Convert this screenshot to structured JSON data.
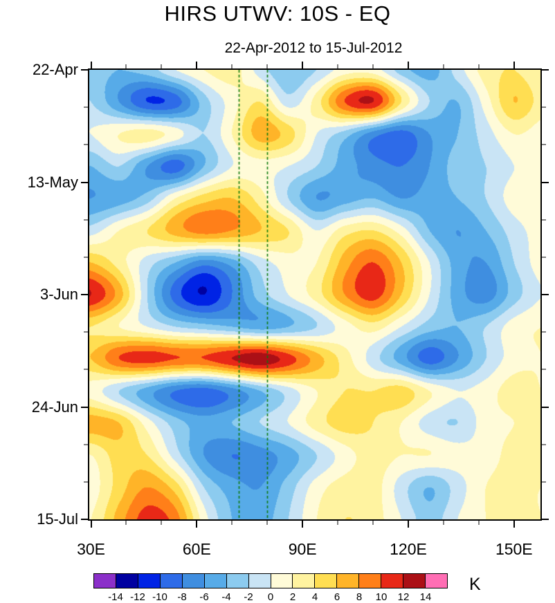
{
  "chart_data": {
    "type": "heatmap",
    "title": "HIRS UTWV: 10S - EQ",
    "subtitle": "22-Apr-2012 to 15-Jul-2012",
    "xlabel": "",
    "ylabel": "",
    "x_axis": {
      "min": 29.5,
      "max": 157.5,
      "major_ticks": [
        30,
        60,
        90,
        120,
        150
      ],
      "major_labels": [
        "30E",
        "60E",
        "90E",
        "120E",
        "150E"
      ],
      "minor_ticks": [
        40,
        50,
        70,
        80,
        100,
        110,
        130,
        140
      ]
    },
    "y_axis": {
      "min": 0,
      "max": 84,
      "major_ticks": [
        0,
        21,
        42,
        63,
        84
      ],
      "major_labels": [
        "22-Apr",
        "13-May",
        "3-Jun",
        "24-Jun",
        "15-Jul"
      ],
      "minor_ticks": [
        7,
        14,
        28,
        35,
        49,
        56,
        70,
        77
      ]
    },
    "grid": {
      "lons": [
        30,
        38,
        46,
        54,
        62,
        70,
        78,
        86,
        94,
        102,
        110,
        118,
        126,
        134,
        142,
        150,
        158
      ],
      "days": [
        0,
        6,
        12,
        18,
        24,
        30,
        36,
        42,
        48,
        54,
        60,
        66,
        72,
        78,
        84
      ],
      "values": [
        [
          -3,
          -4,
          -3,
          0,
          2,
          3,
          -1,
          -4,
          -2,
          1,
          1,
          -3,
          -5,
          -1,
          3,
          4,
          2
        ],
        [
          -2,
          -6,
          -10,
          -9,
          -3,
          1,
          4,
          -1,
          3,
          10,
          12,
          4,
          -2,
          -4,
          1,
          6,
          3
        ],
        [
          0,
          2,
          3,
          1,
          -2,
          2,
          7,
          5,
          0,
          -3,
          -7,
          -9,
          -6,
          -4,
          -1,
          2,
          1
        ],
        [
          -4,
          -2,
          -6,
          -9,
          -4,
          0,
          1,
          0,
          -2,
          -5,
          -7,
          -8,
          -6,
          -3,
          -2,
          0,
          1
        ],
        [
          -6,
          -5,
          -3,
          2,
          5,
          6,
          3,
          -2,
          -6,
          -5,
          -4,
          -6,
          -5,
          -4,
          -2,
          1,
          2
        ],
        [
          -1,
          2,
          4,
          7,
          9,
          8,
          6,
          4,
          0,
          3,
          4,
          1,
          -4,
          -6,
          -4,
          -1,
          1
        ],
        [
          6,
          3,
          -1,
          -4,
          -7,
          -5,
          -1,
          1,
          2,
          7,
          10,
          6,
          0,
          -5,
          -6,
          -2,
          1
        ],
        [
          12,
          7,
          -2,
          -9,
          -12,
          -8,
          -3,
          0,
          3,
          8,
          11,
          6,
          0,
          -5,
          -7,
          -3,
          0
        ],
        [
          4,
          2,
          0,
          -2,
          -3,
          -4,
          -5,
          -4,
          -2,
          1,
          3,
          0,
          -3,
          -4,
          -2,
          1,
          2
        ],
        [
          6,
          10,
          11,
          10,
          10,
          12,
          13.5,
          11,
          7,
          3,
          -1,
          -5,
          -9,
          -6,
          -2,
          1,
          2
        ],
        [
          1,
          -2,
          -5,
          -8,
          -9,
          -7,
          -4,
          -1,
          2,
          4,
          4,
          5,
          2,
          0,
          1,
          3,
          2
        ],
        [
          7,
          6,
          1,
          -3,
          -5,
          -4,
          -2,
          0,
          3,
          5,
          4,
          2,
          -1,
          -2,
          1,
          2,
          3
        ],
        [
          2,
          5,
          4,
          -1,
          -6,
          -8,
          -7,
          -5,
          -2,
          1,
          3,
          2,
          2,
          1,
          1,
          3,
          4
        ],
        [
          1,
          5,
          8,
          5,
          -2,
          -5,
          -6,
          -3,
          1,
          3,
          3,
          -1,
          -4,
          -1,
          2,
          3,
          2
        ],
        [
          2,
          7,
          11,
          9,
          1,
          -4,
          -5,
          -2,
          2,
          4,
          3,
          0,
          -3,
          0,
          2,
          3,
          2
        ]
      ]
    },
    "dashed_lines": {
      "lons": [
        72,
        80
      ],
      "color": "#0c7a0c"
    },
    "colorbar": {
      "levels": [
        -14,
        -12,
        -10,
        -8,
        -6,
        -4,
        -2,
        0,
        2,
        4,
        6,
        8,
        10,
        12,
        14
      ],
      "labels": [
        "-14",
        "-12",
        "-10",
        "-8",
        "-6",
        "-4",
        "-2",
        "0",
        "2",
        "4",
        "6",
        "8",
        "10",
        "12",
        "14"
      ],
      "colors": [
        "#8b2fc9",
        "#0000a0",
        "#0023e5",
        "#2e6be8",
        "#3f8ee0",
        "#57abe8",
        "#8ccbef",
        "#c9e4f5",
        "#fffbd8",
        "#fff3a0",
        "#ffde52",
        "#ffb428",
        "#ff7f19",
        "#e82817",
        "#ab1016",
        "#ff6eb4"
      ],
      "unit": "K"
    }
  }
}
